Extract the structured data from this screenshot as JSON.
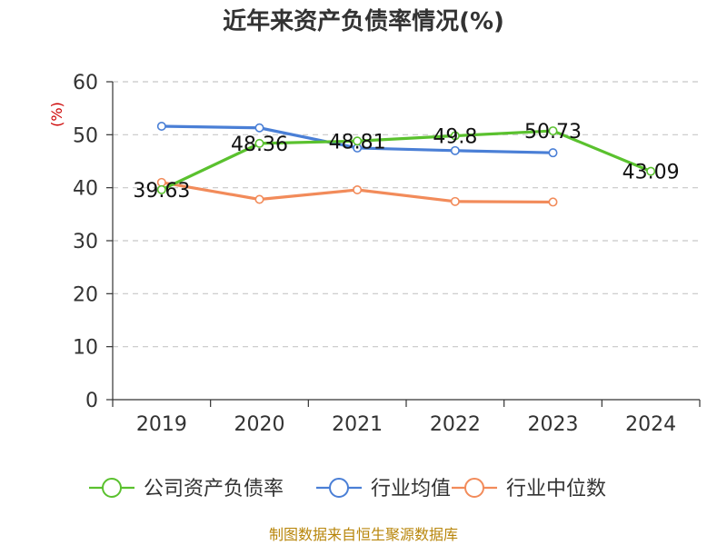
{
  "chart_data": {
    "type": "line",
    "title": "近年来资产负债率情况(%)",
    "ylabel": "(%)",
    "x": [
      "2019",
      "2020",
      "2021",
      "2022",
      "2023",
      "2024"
    ],
    "ylim": [
      0,
      60
    ],
    "yticks": [
      0,
      10,
      20,
      30,
      40,
      50,
      60
    ],
    "grid": true,
    "legend_position": "bottom",
    "series": [
      {
        "name": "公司资产负债率",
        "color": "#5ac12e",
        "values": [
          39.63,
          48.36,
          48.81,
          49.8,
          50.73,
          43.09
        ],
        "labels": [
          "39.63",
          "48.36",
          "48.81",
          "49.8",
          "50.73",
          "43.09"
        ]
      },
      {
        "name": "行业均值",
        "color": "#4a7fd6",
        "values": [
          51.6,
          51.3,
          47.5,
          47.0,
          46.6,
          null
        ]
      },
      {
        "name": "行业中位数",
        "color": "#f28b5a",
        "values": [
          41.0,
          37.8,
          39.6,
          37.4,
          37.3,
          null
        ]
      }
    ],
    "source": "制图数据来自恒生聚源数据库"
  }
}
